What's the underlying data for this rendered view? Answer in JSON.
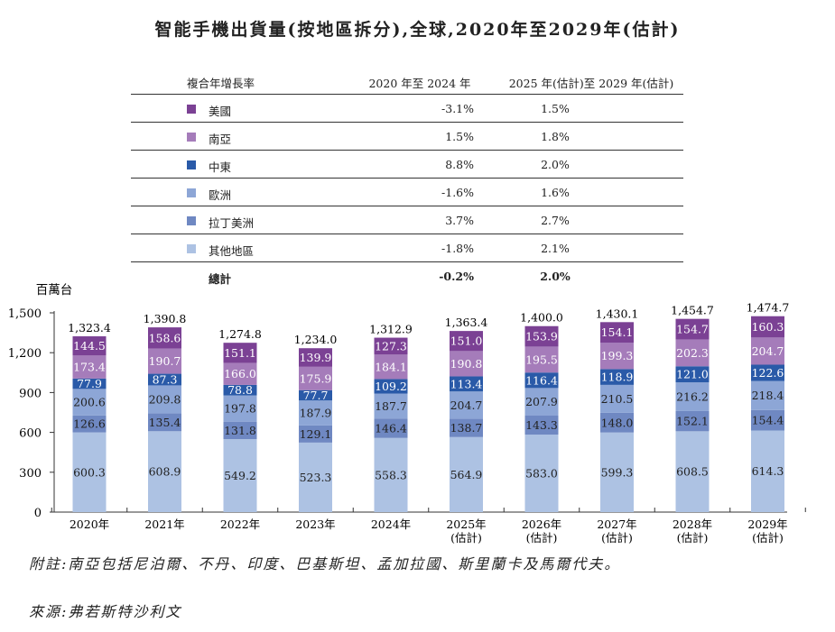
{
  "chart_data": {
    "type": "bar",
    "stacked": true,
    "title": "智能手機出貨量(按地區拆分),全球,2020年至2029年(估計)",
    "ylabel": "百萬台",
    "ylim": [
      0,
      1500
    ],
    "yticks": [
      "0",
      "300",
      "600",
      "900",
      "1,200",
      "1,500"
    ],
    "categories": [
      "2020年",
      "2021年",
      "2022年",
      "2023年",
      "2024年",
      "2025年\n(估計)",
      "2026年\n(估計)",
      "2027年\n(估計)",
      "2028年\n(估計)",
      "2029年\n(估計)"
    ],
    "series": [
      {
        "name": "其他地區",
        "color": "#adc2e3",
        "values": [
          600.3,
          608.9,
          549.2,
          523.3,
          558.3,
          564.9,
          583.0,
          599.3,
          608.5,
          614.3
        ]
      },
      {
        "name": "拉丁美洲",
        "color": "#6f88c2",
        "values": [
          126.6,
          135.4,
          131.8,
          129.1,
          146.4,
          138.7,
          143.3,
          148.0,
          152.1,
          154.4
        ]
      },
      {
        "name": "歐洲",
        "color": "#8da6d6",
        "values": [
          200.6,
          209.8,
          197.8,
          187.9,
          187.7,
          204.7,
          207.9,
          210.5,
          216.2,
          218.4
        ]
      },
      {
        "name": "中東",
        "color": "#2a5aa8",
        "values": [
          77.9,
          87.3,
          78.8,
          77.7,
          109.2,
          113.4,
          116.4,
          118.9,
          121.0,
          122.6
        ]
      },
      {
        "name": "南亞",
        "color": "#a57cba",
        "values": [
          173.4,
          190.7,
          166.0,
          175.9,
          184.1,
          190.8,
          195.5,
          199.3,
          202.3,
          204.7
        ]
      },
      {
        "name": "美國",
        "color": "#7b4194",
        "values": [
          144.5,
          158.6,
          151.1,
          139.9,
          127.3,
          151.0,
          153.9,
          154.1,
          154.7,
          160.3
        ]
      }
    ],
    "totals": [
      "1,323.4",
      "1,390.8",
      "1,274.8",
      "1,234.0",
      "1,312.9",
      "1,363.4",
      "1,400.0",
      "1,430.1",
      "1,454.7",
      "1,474.7"
    ],
    "grid": false
  },
  "cagr_table": {
    "headers": [
      "複合年增長率",
      "2020 年至 2024 年",
      "2025 年(估計)至 2029 年(估計)"
    ],
    "rows": [
      {
        "label": "美國",
        "color": "#7b4194",
        "a": "-3.1%",
        "b": "1.5%"
      },
      {
        "label": "南亞",
        "color": "#a57cba",
        "a": "1.5%",
        "b": "1.8%"
      },
      {
        "label": "中東",
        "color": "#2a5aa8",
        "a": "8.8%",
        "b": "2.0%"
      },
      {
        "label": "歐洲",
        "color": "#8da6d6",
        "a": "-1.6%",
        "b": "1.6%"
      },
      {
        "label": "拉丁美洲",
        "color": "#6f88c2",
        "a": "3.7%",
        "b": "2.7%"
      },
      {
        "label": "其他地區",
        "color": "#adc2e3",
        "a": "-1.8%",
        "b": "2.1%"
      }
    ],
    "total": {
      "label": "總計",
      "a": "-0.2%",
      "b": "2.0%"
    }
  },
  "notes": {
    "footnote": "附註:南亞包括尼泊爾、不丹、印度、巴基斯坦、孟加拉國、斯里蘭卡及馬爾代夫。",
    "source": "來源:弗若斯特沙利文"
  }
}
